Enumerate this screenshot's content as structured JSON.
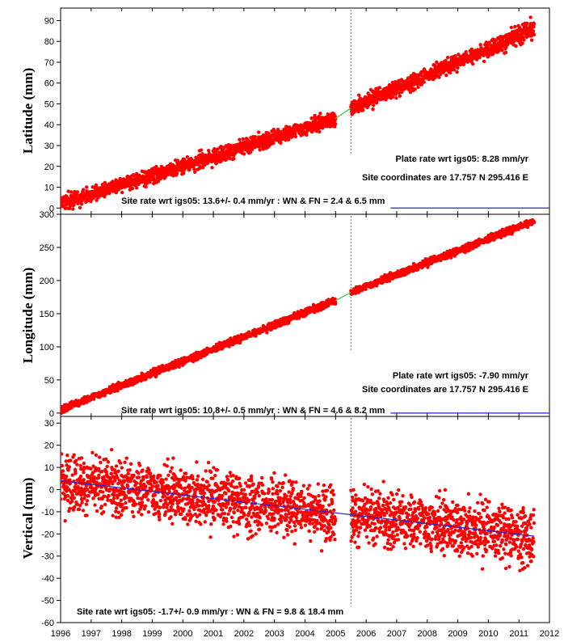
{
  "chart_data": [
    {
      "type": "scatter",
      "ylabel": "Latitude (mm)",
      "xlim": [
        1996,
        2012
      ],
      "ylim": [
        -3,
        96
      ],
      "yticks": [
        0,
        10,
        20,
        30,
        40,
        50,
        60,
        70,
        80,
        90
      ],
      "gap": [
        2005.0,
        2005.5
      ],
      "break_epoch": 2005.5,
      "colors": {
        "points": "#ff0000",
        "fit": "#2222cc",
        "gap_fit": "#33cc33"
      },
      "series": [
        {
          "name": "",
          "x_range": [
            1996.0,
            2011.5
          ],
          "trend": [
            [
              1996.0,
              2.0
            ],
            [
              2005.0,
              43.0
            ],
            [
              2005.5,
              48.0
            ],
            [
              2011.5,
              86.0
            ]
          ],
          "noise": 3.2
        }
      ],
      "annotations": {
        "plate_rate": "Plate rate wrt igs05: 8.28 mm/yr",
        "site_coords": "Site coordinates are  17.757 N    295.416 E",
        "site_rate": "Site rate wrt igs05:  13.6+/- 0.4 mm/yr : WN & FN =   2.4 &   6.5 mm"
      }
    },
    {
      "type": "scatter",
      "ylabel": "Longitude (mm)",
      "xlim": [
        1996,
        2012
      ],
      "ylim": [
        -5,
        300
      ],
      "yticks": [
        0,
        50,
        100,
        150,
        200,
        250,
        300
      ],
      "gap": [
        2005.0,
        2005.5
      ],
      "break_epoch": 2005.5,
      "colors": {
        "points": "#ff0000",
        "fit": "#2222cc",
        "gap_fit": "#33cc33"
      },
      "series": [
        {
          "name": "",
          "x_range": [
            1996.0,
            2011.5
          ],
          "trend": [
            [
              1996.0,
              5.0
            ],
            [
              2005.0,
              170.0
            ],
            [
              2005.5,
              182.0
            ],
            [
              2011.5,
              290.0
            ]
          ],
          "noise": 4.5
        }
      ],
      "annotations": {
        "plate_rate": "Plate rate wrt igs05: -7.90 mm/yr",
        "site_coords": "Site coordinates are  17.757 N    295.416 E",
        "site_rate": "Site rate wrt igs05:  10.8+/- 0.5 mm/yr : WN & FN =   4.6 &   8.2 mm"
      }
    },
    {
      "type": "scatter",
      "ylabel": "Vertical (mm)",
      "xlim": [
        1996,
        2012
      ],
      "ylim": [
        -60,
        33
      ],
      "yticks": [
        -60,
        -50,
        -40,
        -30,
        -20,
        -10,
        0,
        10,
        20,
        30
      ],
      "xticks": [
        "1996",
        "1997",
        "1998",
        "1999",
        "2000",
        "2001",
        "2002",
        "2003",
        "2004",
        "2005",
        "2006",
        "2007",
        "2008",
        "2009",
        "2010",
        "2011",
        "2012"
      ],
      "gap": [
        2005.0,
        2005.5
      ],
      "break_epoch": 2005.5,
      "colors": {
        "points": "#ff0000",
        "fit": "#2222cc",
        "gap_fit": "#33cc33"
      },
      "series": [
        {
          "name": "",
          "x_range": [
            1996.0,
            2011.5
          ],
          "trend": [
            [
              1996.0,
              4.0
            ],
            [
              2011.5,
              -21.0
            ]
          ],
          "noise": 11.0
        }
      ],
      "annotations": {
        "site_rate": "Site rate wrt igs05:  -1.7+/- 0.9 mm/yr : WN & FN =   9.8 &  18.4 mm"
      }
    }
  ]
}
